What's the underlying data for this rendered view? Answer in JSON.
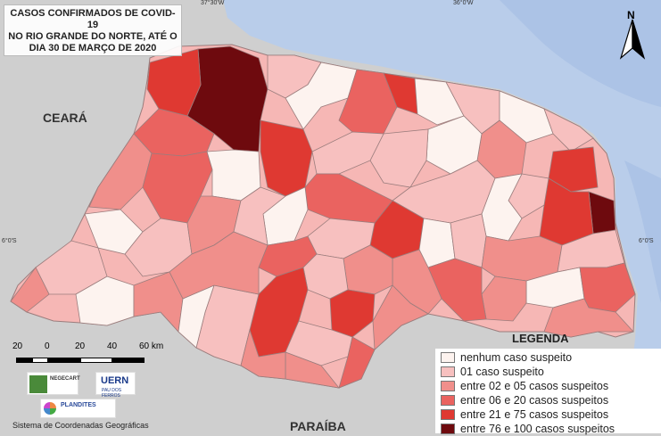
{
  "title": {
    "line1": "CASOS CONFIRMADOS DE COVID-19",
    "line2": "NO RIO GRANDE DO NORTE, ATÉ O",
    "line3": "DIA 30 DE MARÇO DE 2020"
  },
  "coordinates": {
    "lon1": "37°30'W",
    "lon2": "36°0'W",
    "lat_left": "6°0'S",
    "lat_right": "6°0'S"
  },
  "states": {
    "ceara": "CEARÁ",
    "paraiba": "PARAÍBA"
  },
  "north_label": "N",
  "scale": {
    "labels": [
      "20",
      "0",
      "20",
      "40",
      "60 km"
    ]
  },
  "legend": {
    "title": "LEGENDA",
    "items": [
      {
        "label": "nenhum caso suspeito",
        "color": "#fdf3ef"
      },
      {
        "label": "01 caso suspeito",
        "color": "#f7c0bf"
      },
      {
        "label": "entre 02 e 05 casos suspeitos",
        "color": "#f08f8b"
      },
      {
        "label": "entre 06 e 20 casos suspeitos",
        "color": "#ea6360"
      },
      {
        "label": "entre 21 e 75 casos suspeitos",
        "color": "#df3932"
      },
      {
        "label": "entre 76 e 100 casos suspeitos",
        "color": "#6e0a0e"
      }
    ]
  },
  "logos": {
    "negecart": "NEGECART",
    "uern": "UERN",
    "uern_sub": "PAU DOS FERROS",
    "plandites": "PLANDITES"
  },
  "footer": "Sistema de Coordenadas Geográficas"
}
